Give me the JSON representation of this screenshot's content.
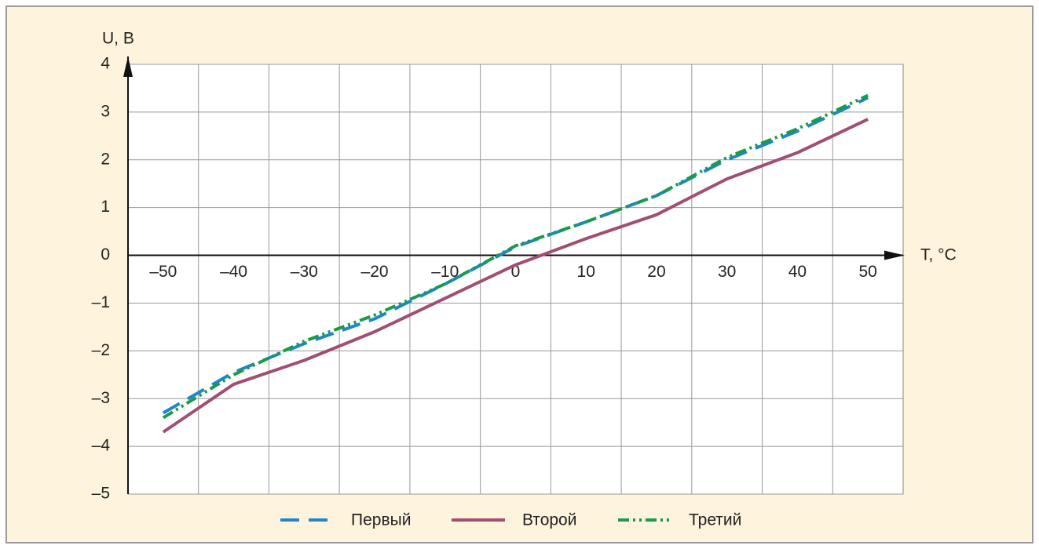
{
  "chart_data": {
    "type": "line",
    "x_label": "T, °C",
    "y_label": "U, B",
    "categories": [
      "–50",
      "–40",
      "–30",
      "–20",
      "–10",
      "0",
      "10",
      "20",
      "30",
      "40",
      "50"
    ],
    "series": [
      {
        "name": "Первый",
        "color": "#1f86c8",
        "dash": "24 12",
        "values": [
          -3.3,
          -2.45,
          -1.85,
          -1.33,
          -0.6,
          0.18,
          0.7,
          1.25,
          2.0,
          2.6,
          3.3
        ]
      },
      {
        "name": "Второй",
        "color": "#a14e73",
        "dash": "none",
        "values": [
          -3.7,
          -2.7,
          -2.2,
          -1.6,
          -0.9,
          -0.2,
          0.35,
          0.85,
          1.6,
          2.15,
          2.85
        ]
      },
      {
        "name": "Третий",
        "color": "#1a9a4a",
        "dash": "14 5 3 5 3 5",
        "values": [
          -3.4,
          -2.5,
          -1.8,
          -1.25,
          -0.6,
          0.2,
          0.7,
          1.25,
          2.05,
          2.65,
          3.35
        ]
      }
    ],
    "ylim": [
      -5,
      4
    ],
    "yticks": [
      {
        "value": -5,
        "label": "–5"
      },
      {
        "value": -4,
        "label": "–4"
      },
      {
        "value": -3,
        "label": "–3"
      },
      {
        "value": -2,
        "label": "–2"
      },
      {
        "value": -1,
        "label": "–1"
      },
      0,
      1,
      2,
      3,
      4
    ],
    "grid": true,
    "legend": "bottom"
  }
}
